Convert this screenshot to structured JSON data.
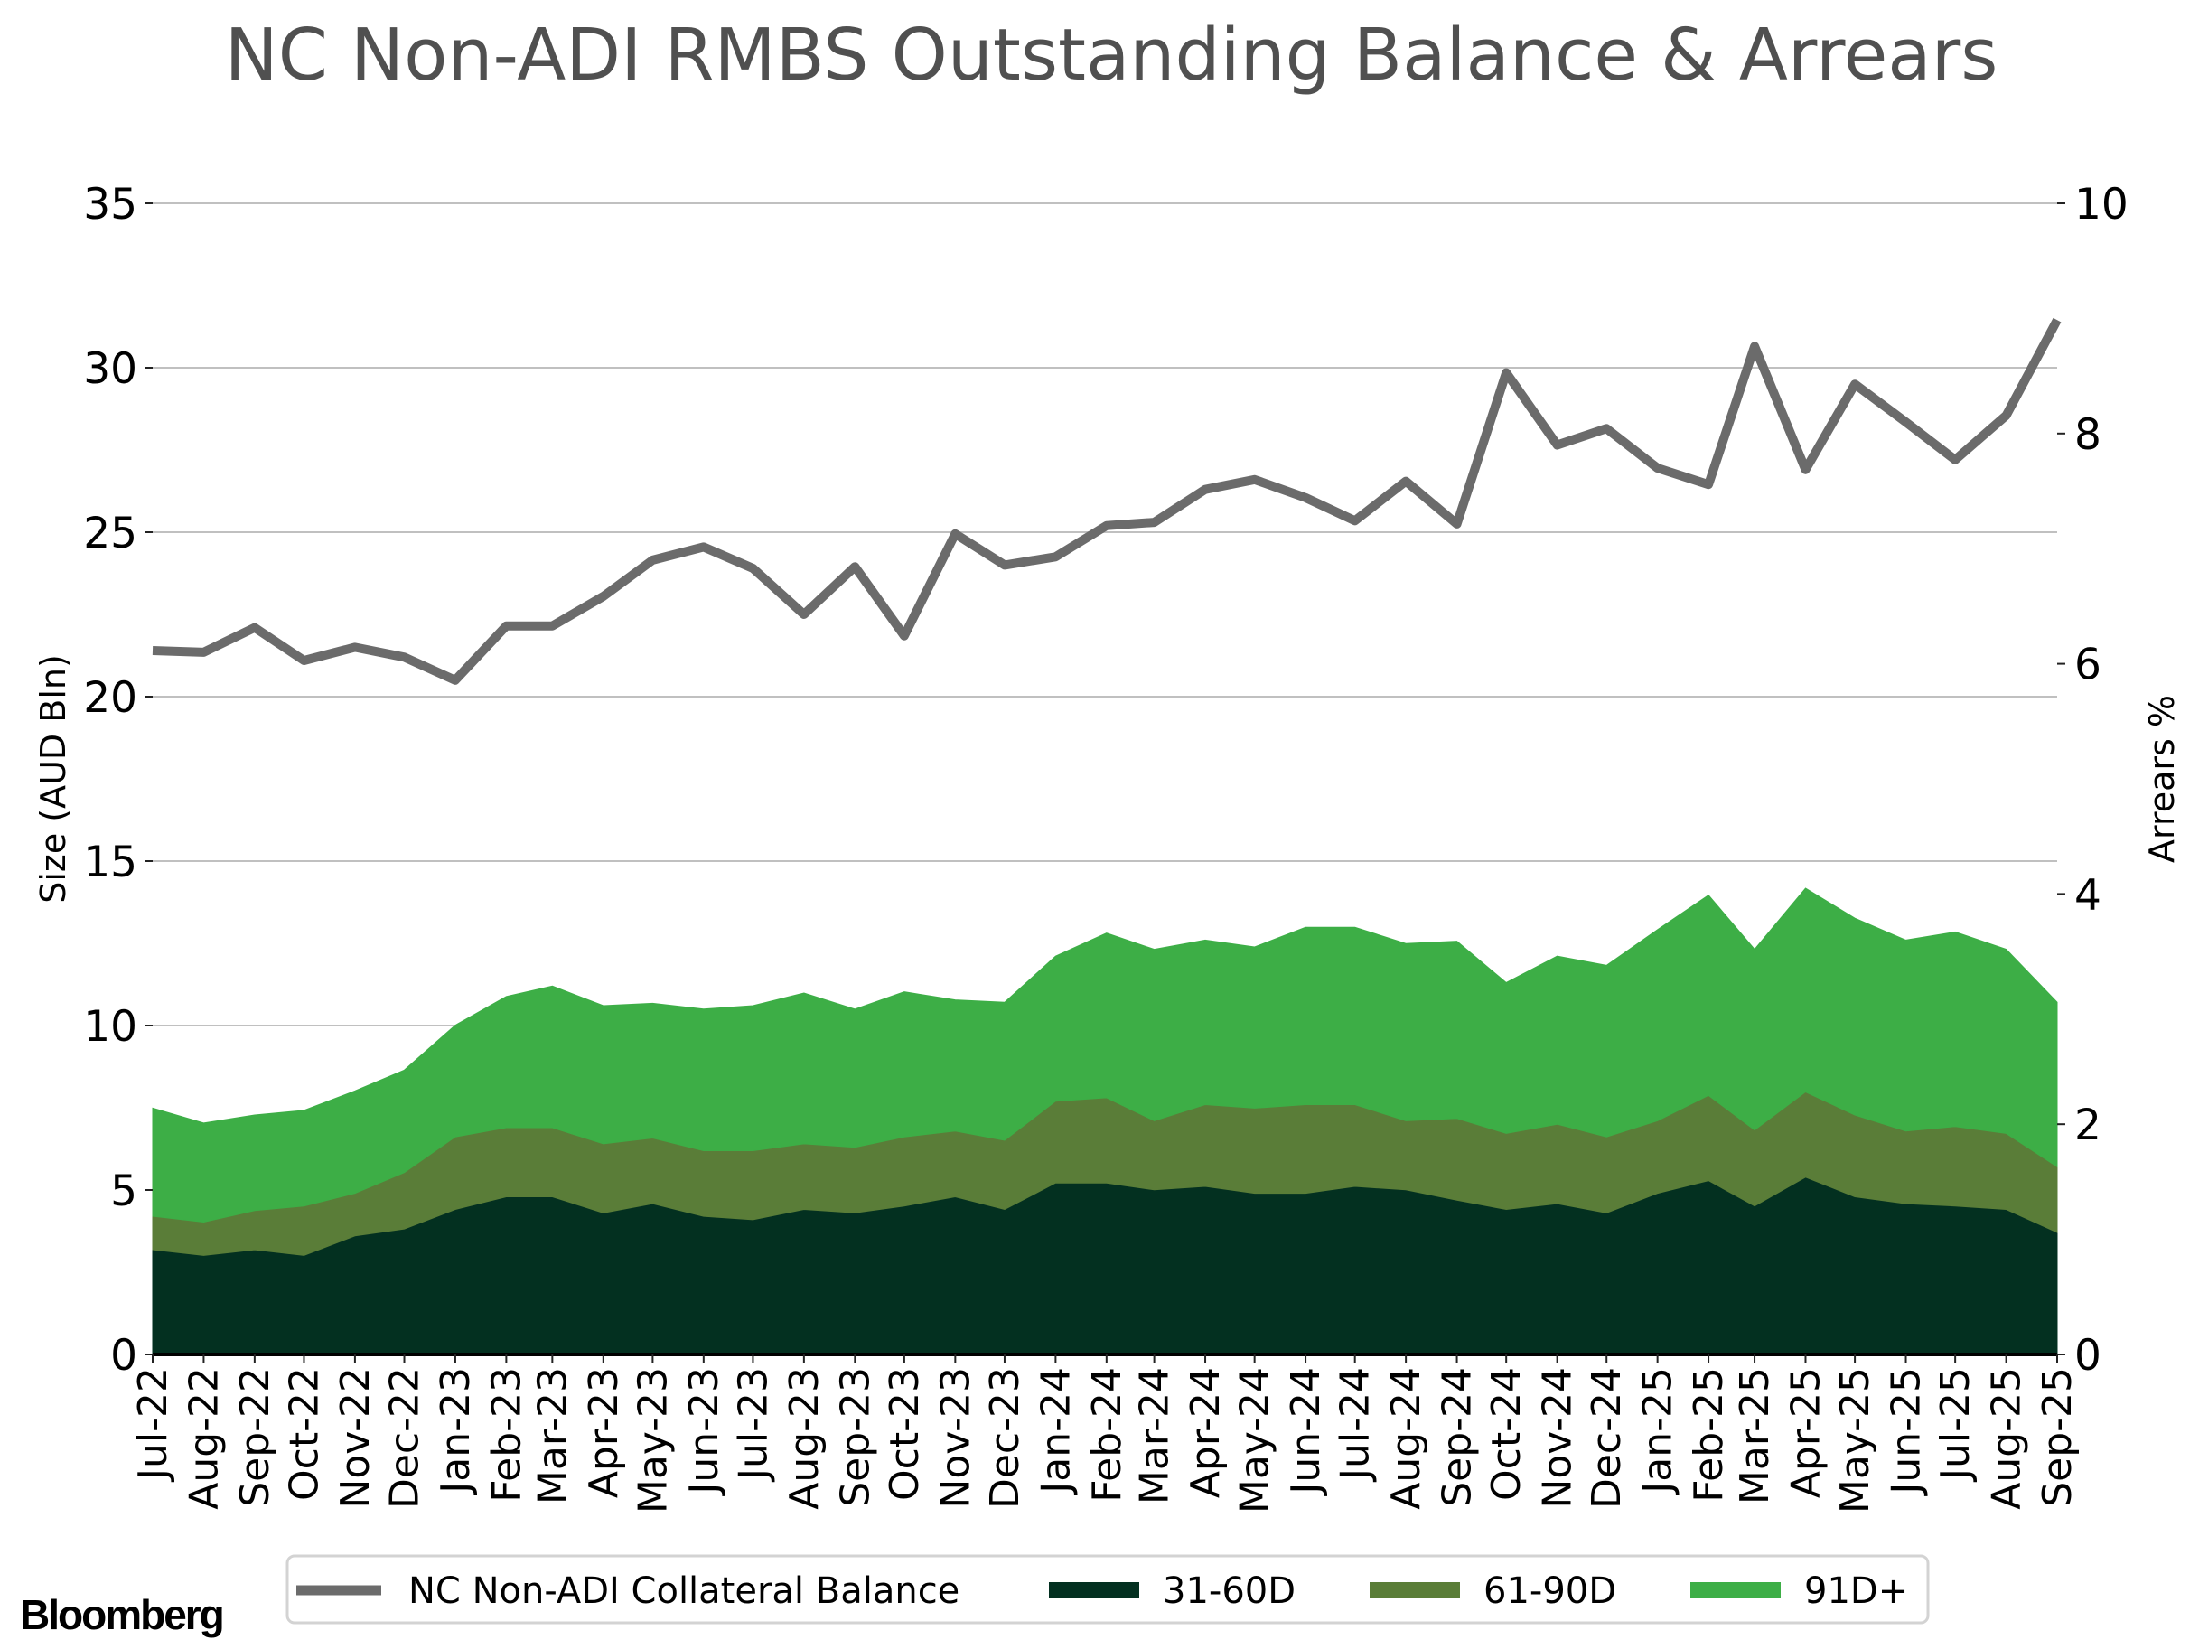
{
  "chart_data": {
    "type": "area+line",
    "title": "NC Non-ADI RMBS Outstanding Balance & Arrears",
    "ylabel": "Size (AUD Bln)",
    "y2label": "Arrears %",
    "ylim": [
      0,
      35
    ],
    "y2lim": [
      0,
      10
    ],
    "yticks": [
      "0",
      "5",
      "10",
      "15",
      "20",
      "25",
      "30",
      "35"
    ],
    "y2ticks": [
      "0",
      "2",
      "4",
      "6",
      "8",
      "10"
    ],
    "grid": true,
    "legend_position": "bottom",
    "categories": [
      "Jul-22",
      "Aug-22",
      "Sep-22",
      "Oct-22",
      "Nov-22",
      "Dec-22",
      "Jan-23",
      "Feb-23",
      "Mar-23",
      "Apr-23",
      "May-23",
      "Jun-23",
      "Jul-23",
      "Aug-23",
      "Sep-23",
      "Oct-23",
      "Nov-23",
      "Dec-23",
      "Jan-24",
      "Feb-24",
      "Mar-24",
      "Apr-24",
      "May-24",
      "Jun-24",
      "Jul-24",
      "Aug-24",
      "Sep-24",
      "Oct-24",
      "Nov-24",
      "Dec-24",
      "Jan-25",
      "Feb-25",
      "Mar-25",
      "Apr-25",
      "May-25",
      "Jun-25",
      "Jul-25",
      "Aug-25",
      "Sep-25"
    ],
    "line_series": {
      "name": "NC Non-ADI Collateral Balance",
      "axis": "left",
      "color": "#6b6b6b",
      "values": [
        21.4,
        21.35,
        22.1,
        21.1,
        21.5,
        21.2,
        20.5,
        22.15,
        22.15,
        23.05,
        24.15,
        24.55,
        23.9,
        22.5,
        23.95,
        21.85,
        24.95,
        24.0,
        24.25,
        25.2,
        25.3,
        26.3,
        26.6,
        26.05,
        25.35,
        26.55,
        25.25,
        29.85,
        27.65,
        28.15,
        26.95,
        26.45,
        30.65,
        26.9,
        29.5,
        28.35,
        27.2,
        28.55,
        31.45
      ]
    },
    "area_series": [
      {
        "name": "31-60D",
        "axis": "right",
        "color": "#033020",
        "values": [
          0.91,
          0.86,
          0.91,
          0.86,
          1.03,
          1.09,
          1.26,
          1.37,
          1.37,
          1.23,
          1.31,
          1.2,
          1.17,
          1.26,
          1.23,
          1.29,
          1.37,
          1.26,
          1.49,
          1.49,
          1.43,
          1.46,
          1.4,
          1.4,
          1.46,
          1.43,
          1.34,
          1.26,
          1.31,
          1.23,
          1.4,
          1.51,
          1.29,
          1.54,
          1.37,
          1.31,
          1.29,
          1.26,
          1.06
        ]
      },
      {
        "name": "61-90D",
        "axis": "right",
        "color": "#5a7d38",
        "values": [
          0.29,
          0.29,
          0.34,
          0.43,
          0.37,
          0.49,
          0.63,
          0.6,
          0.6,
          0.6,
          0.57,
          0.57,
          0.6,
          0.57,
          0.57,
          0.6,
          0.57,
          0.6,
          0.71,
          0.74,
          0.6,
          0.71,
          0.74,
          0.77,
          0.71,
          0.6,
          0.71,
          0.66,
          0.69,
          0.66,
          0.63,
          0.74,
          0.66,
          0.74,
          0.71,
          0.63,
          0.69,
          0.66,
          0.57
        ]
      },
      {
        "name": "91D+",
        "axis": "right",
        "color": "#3dae46",
        "values": [
          0.94,
          0.86,
          0.83,
          0.83,
          0.89,
          0.89,
          0.97,
          1.14,
          1.23,
          1.2,
          1.17,
          1.23,
          1.26,
          1.31,
          1.2,
          1.26,
          1.14,
          1.2,
          1.26,
          1.43,
          1.49,
          1.43,
          1.4,
          1.54,
          1.54,
          1.54,
          1.54,
          1.31,
          1.46,
          1.49,
          1.66,
          1.74,
          1.57,
          1.77,
          1.71,
          1.66,
          1.69,
          1.6,
          1.43
        ]
      }
    ]
  },
  "colors": {
    "title": "#505050",
    "grid": "#c0c0c0",
    "legend_border": "#d3d3d3"
  },
  "branding": {
    "logo_text": "Bloomberg"
  }
}
